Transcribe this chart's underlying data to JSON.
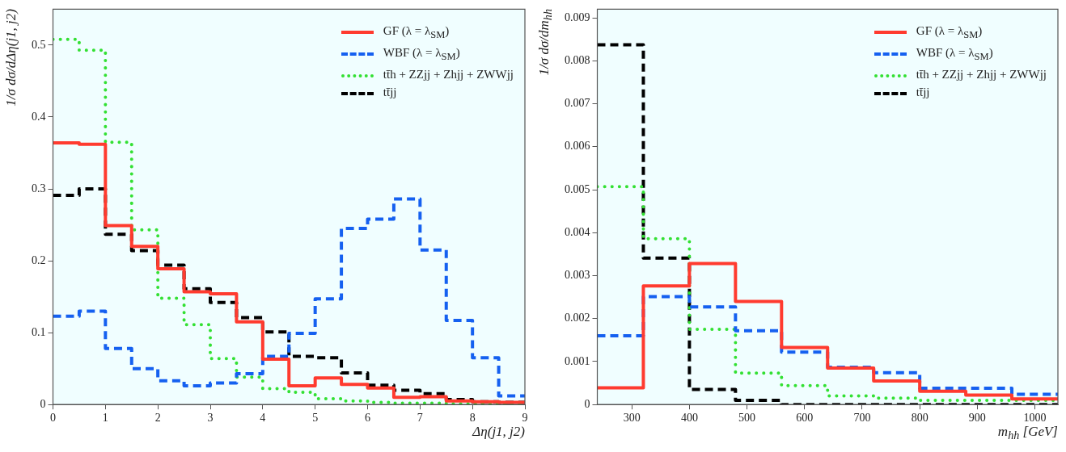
{
  "chart_data": [
    {
      "type": "histogram",
      "xlabel": "Δη(j1, j2)",
      "ylabel": "1/σ dσ/dΔη(j1, j2)",
      "bins": [
        0,
        0.5,
        1,
        1.5,
        2,
        2.5,
        3,
        3.5,
        4,
        4.5,
        5,
        5.5,
        6,
        6.5,
        7,
        7.5,
        8,
        8.5,
        9
      ],
      "xlim": [
        0,
        9
      ],
      "xticks": [
        0,
        1,
        2,
        3,
        4,
        5,
        6,
        7,
        8,
        9
      ],
      "ylim": [
        0,
        0.55
      ],
      "yticks": [
        0,
        0.1,
        0.2,
        0.3,
        0.4,
        0.5
      ],
      "legend": "top right",
      "series": [
        {
          "name": "GF (λ = λ$_{SM}$)",
          "color": "#ff3b2f",
          "line_style": "solid",
          "values": [
            0.364,
            0.362,
            0.249,
            0.22,
            0.189,
            0.157,
            0.154,
            0.115,
            0.063,
            0.026,
            0.037,
            0.028,
            0.023,
            0.01,
            0.011,
            0.005,
            0.004,
            0.003
          ]
        },
        {
          "name": "WBF (λ = λ$_{SM}$)",
          "color": "#1560f0",
          "line_style": "dashed",
          "values": [
            0.123,
            0.13,
            0.078,
            0.05,
            0.033,
            0.026,
            0.03,
            0.043,
            0.067,
            0.099,
            0.147,
            0.245,
            0.258,
            0.286,
            0.215,
            0.117,
            0.065,
            0.012
          ]
        },
        {
          "name": "tt̄h + ZZjj + Zhjj + ZWWjj",
          "color": "#33e033",
          "line_style": "dotted",
          "values": [
            0.508,
            0.493,
            0.365,
            0.243,
            0.148,
            0.111,
            0.064,
            0.038,
            0.022,
            0.017,
            0.008,
            0.005,
            0.003,
            0.002,
            0.002,
            0.001,
            0.001,
            0.001
          ]
        },
        {
          "name": "tt̄jj",
          "color": "#000000",
          "line_style": "dashed",
          "values": [
            0.291,
            0.3,
            0.237,
            0.214,
            0.194,
            0.161,
            0.142,
            0.121,
            0.101,
            0.067,
            0.065,
            0.044,
            0.027,
            0.02,
            0.015,
            0.007,
            0.004,
            0.003
          ]
        }
      ]
    },
    {
      "type": "histogram",
      "xlabel": "m$_{hh}$ [GeV]",
      "ylabel": "1/σ dσ/dm$_{hh}$",
      "bins": [
        240,
        320,
        400,
        480,
        560,
        640,
        720,
        800,
        880,
        960,
        1040
      ],
      "xlim": [
        240,
        1040
      ],
      "xticks": [
        300,
        400,
        500,
        600,
        700,
        800,
        900,
        1000
      ],
      "ylim": [
        0,
        0.0092
      ],
      "yticks": [
        0,
        0.001,
        0.002,
        0.003,
        0.004,
        0.005,
        0.006,
        0.007,
        0.008,
        0.009
      ],
      "legend": "top right",
      "series": [
        {
          "name": "GF (λ = λ$_{SM}$)",
          "color": "#ff3b2f",
          "line_style": "solid",
          "values": [
            0.00039,
            0.00276,
            0.00328,
            0.0024,
            0.00133,
            0.00085,
            0.00055,
            0.00031,
            0.00022,
            0.00013
          ]
        },
        {
          "name": "WBF (λ = λ$_{SM}$)",
          "color": "#1560f0",
          "line_style": "dashed",
          "values": [
            0.0016,
            0.00251,
            0.00227,
            0.00172,
            0.00122,
            0.00087,
            0.00074,
            0.00038,
            0.00038,
            0.00024
          ]
        },
        {
          "name": "tt̄h + ZZjj + Zhjj + ZWWjj",
          "color": "#33e033",
          "line_style": "dotted",
          "values": [
            0.00507,
            0.00386,
            0.00175,
            0.00073,
            0.00044,
            0.0002,
            0.00015,
            0.0001,
            0.0001,
            0.0001
          ]
        },
        {
          "name": "tt̄jj",
          "color": "#000000",
          "line_style": "dashed",
          "values": [
            0.00837,
            0.00341,
            0.00035,
            0.0001,
            0,
            0,
            0,
            0,
            0,
            0
          ]
        }
      ]
    }
  ]
}
